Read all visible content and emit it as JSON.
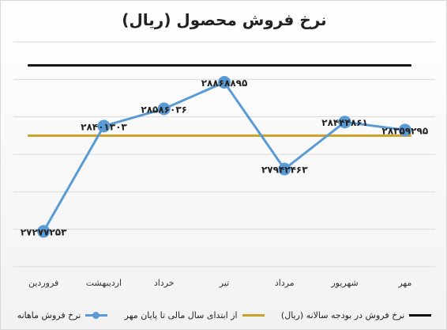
{
  "chart_data": {
    "type": "line",
    "title": "نرخ فروش محصول (ریال)",
    "categories": [
      "فروردین",
      "اردیبهشت",
      "خرداد",
      "تیر",
      "مرداد",
      "شهریور",
      "مهر"
    ],
    "series": [
      {
        "name": "نرخ فروش ماهانه",
        "values": [
          27277253,
          28401303,
          28586036,
          28868895,
          27942463,
          28444861,
          28359295
        ],
        "labels": [
          "۲۷۲۷۷۲۵۳",
          "۲۸۴۰۱۳۰۳",
          "۲۸۵۸۶۰۳۶",
          "۲۸۸۶۸۸۹۵",
          "۲۷۹۴۲۴۶۳",
          "۲۸۴۴۴۸۶۱",
          "۲۸۳۵۹۲۹۵"
        ],
        "color": "#5b9bd5"
      },
      {
        "name": "از ابتدای سال مالی تا پایان مهر",
        "value": 28300000,
        "color": "#c9a227"
      },
      {
        "name": "نرخ فروش در بودجه سالانه (ریال)",
        "value": 29050000,
        "color": "#111111"
      }
    ],
    "ylim": [
      26900000,
      29300000
    ],
    "grid": true,
    "legend": "bottom"
  }
}
